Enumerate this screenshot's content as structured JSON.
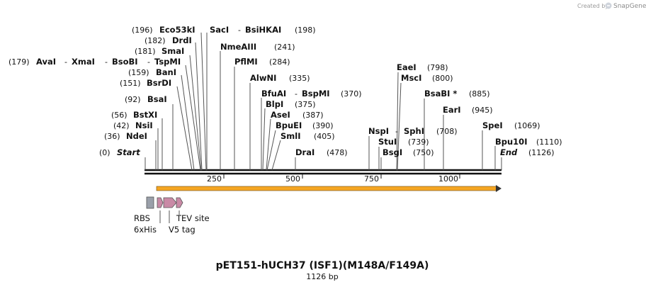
{
  "header": {
    "credit": "Created by",
    "brand": "SnapGene"
  },
  "map": {
    "title": "pET151-hUCH37 (ISF1)(M148A/F149A)",
    "subtitle": "1126 bp",
    "length": 1126,
    "ticks": [
      250,
      500,
      750,
      1000
    ],
    "ends": [
      {
        "name": "Start",
        "pos": "(0)"
      },
      {
        "name": "End",
        "pos": "(1126)"
      }
    ],
    "enzymes": [
      {
        "id": "ndei",
        "text": "NdeI",
        "pos": "(36)"
      },
      {
        "id": "nsii",
        "text": "NsiI",
        "pos": "(42)"
      },
      {
        "id": "bstxi",
        "text": "BstXI",
        "pos": "(56)"
      },
      {
        "id": "bsai",
        "text": "BsaI",
        "pos": "(92)"
      },
      {
        "id": "bsrdi",
        "text": "BsrDI",
        "pos": "(151)"
      },
      {
        "id": "bani",
        "text": "BanI",
        "pos": "(159)"
      },
      {
        "id": "avai-group",
        "text": "AvaI",
        "text2": "XmaI",
        "text3": "BsoBI",
        "text4": "TspMI",
        "pos": "(179)"
      },
      {
        "id": "smai",
        "text": "SmaI",
        "pos": "(181)"
      },
      {
        "id": "drdi",
        "text": "DrdI",
        "pos": "(182)"
      },
      {
        "id": "eco53ki",
        "text": "Eco53kI",
        "pos": "(196)"
      },
      {
        "id": "saci-group",
        "text": "SacI",
        "text2": "BsiHKAI",
        "pos": "(198)"
      },
      {
        "id": "nmeaiii",
        "text": "NmeAIII",
        "pos": "(241)"
      },
      {
        "id": "pflmi",
        "text": "PflMI",
        "pos": "(284)"
      },
      {
        "id": "alwni",
        "text": "AlwNI",
        "pos": "(335)"
      },
      {
        "id": "bfuai-group",
        "text": "BfuAI",
        "text2": "BspMI",
        "pos": "(370)"
      },
      {
        "id": "blpi",
        "text": "BlpI",
        "pos": "(375)"
      },
      {
        "id": "asei",
        "text": "AseI",
        "pos": "(387)"
      },
      {
        "id": "bpuei",
        "text": "BpuEI",
        "pos": "(390)"
      },
      {
        "id": "smli",
        "text": "SmlI",
        "pos": "(405)"
      },
      {
        "id": "drai",
        "text": "DraI",
        "pos": "(478)"
      },
      {
        "id": "nspi-group",
        "text": "NspI",
        "text2": "SphI",
        "pos": "(708)"
      },
      {
        "id": "stui",
        "text": "StuI",
        "pos": "(739)"
      },
      {
        "id": "bsgi",
        "text": "BsgI",
        "pos": "(750)"
      },
      {
        "id": "eaei",
        "text": "EaeI",
        "pos": "(798)"
      },
      {
        "id": "msci",
        "text": "MscI",
        "pos": "(800)"
      },
      {
        "id": "bsabi",
        "text": "BsaBI *",
        "pos": "(885)"
      },
      {
        "id": "eari",
        "text": "EarI",
        "pos": "(945)"
      },
      {
        "id": "spei",
        "text": "SpeI",
        "pos": "(1069)"
      },
      {
        "id": "bpu10i",
        "text": "Bpu10I",
        "pos": "(1110)"
      }
    ],
    "features": [
      {
        "id": "rbs",
        "label": "RBS"
      },
      {
        "id": "his",
        "label": "6xHis"
      },
      {
        "id": "v5",
        "label": "V5 tag"
      },
      {
        "id": "tev",
        "label": "TEV site"
      }
    ],
    "colors": {
      "orf_fill": "#f5a623",
      "orf_edge": "#444444",
      "rbs": "#9aa0aa",
      "tag": "#c98aa6",
      "backbone": "#111111"
    }
  }
}
